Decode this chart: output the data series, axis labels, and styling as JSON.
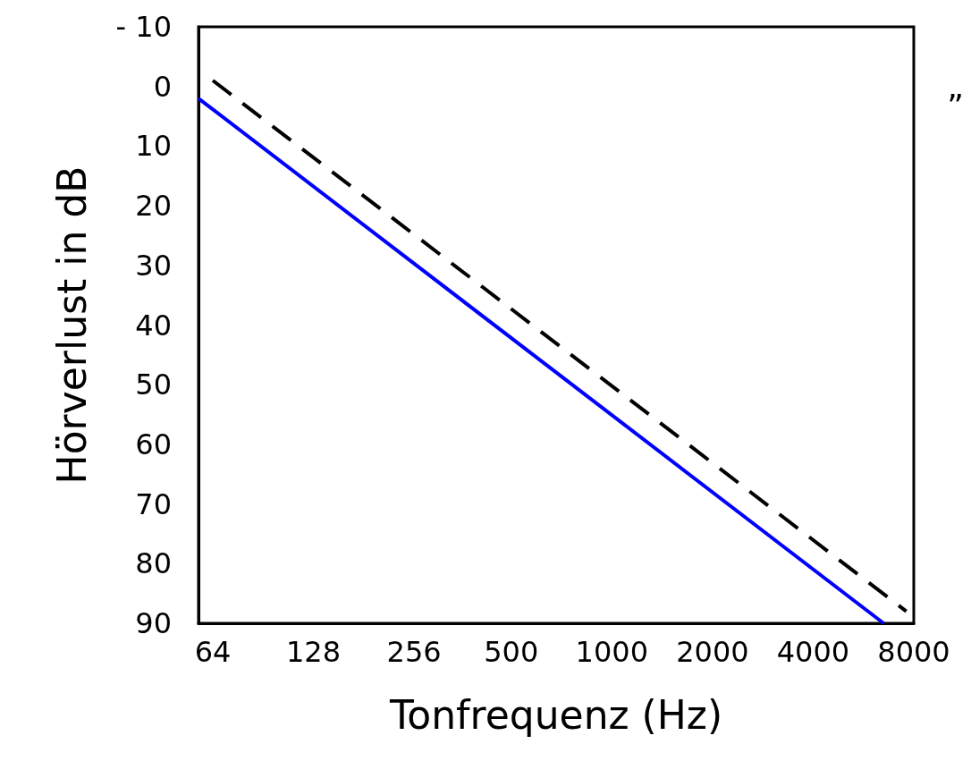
{
  "chart_data": {
    "type": "line",
    "xlabel": "Tonfrequenz (Hz)",
    "ylabel": "Hörverlust in dB",
    "log": "x",
    "xlim": [
      58,
      8000
    ],
    "xticks": [
      64,
      128,
      256,
      500,
      1000,
      2000,
      4000,
      8000
    ],
    "ylim": [
      90,
      -10
    ],
    "yticks": [
      {
        "value": -10,
        "label": "- 10"
      },
      0,
      10,
      20,
      30,
      40,
      50,
      60,
      70,
      80,
      90
    ],
    "grid": false,
    "marker": "none",
    "annotations": [
      "”"
    ],
    "series": [
      {
        "color": "#0000ff",
        "line_style": "solid",
        "x": [
          58,
          6500
        ],
        "values": [
          2,
          90
        ]
      },
      {
        "color": "#000000",
        "line_style": "dashed",
        "x": [
          64,
          7600
        ],
        "values": [
          -1,
          88
        ]
      }
    ]
  }
}
